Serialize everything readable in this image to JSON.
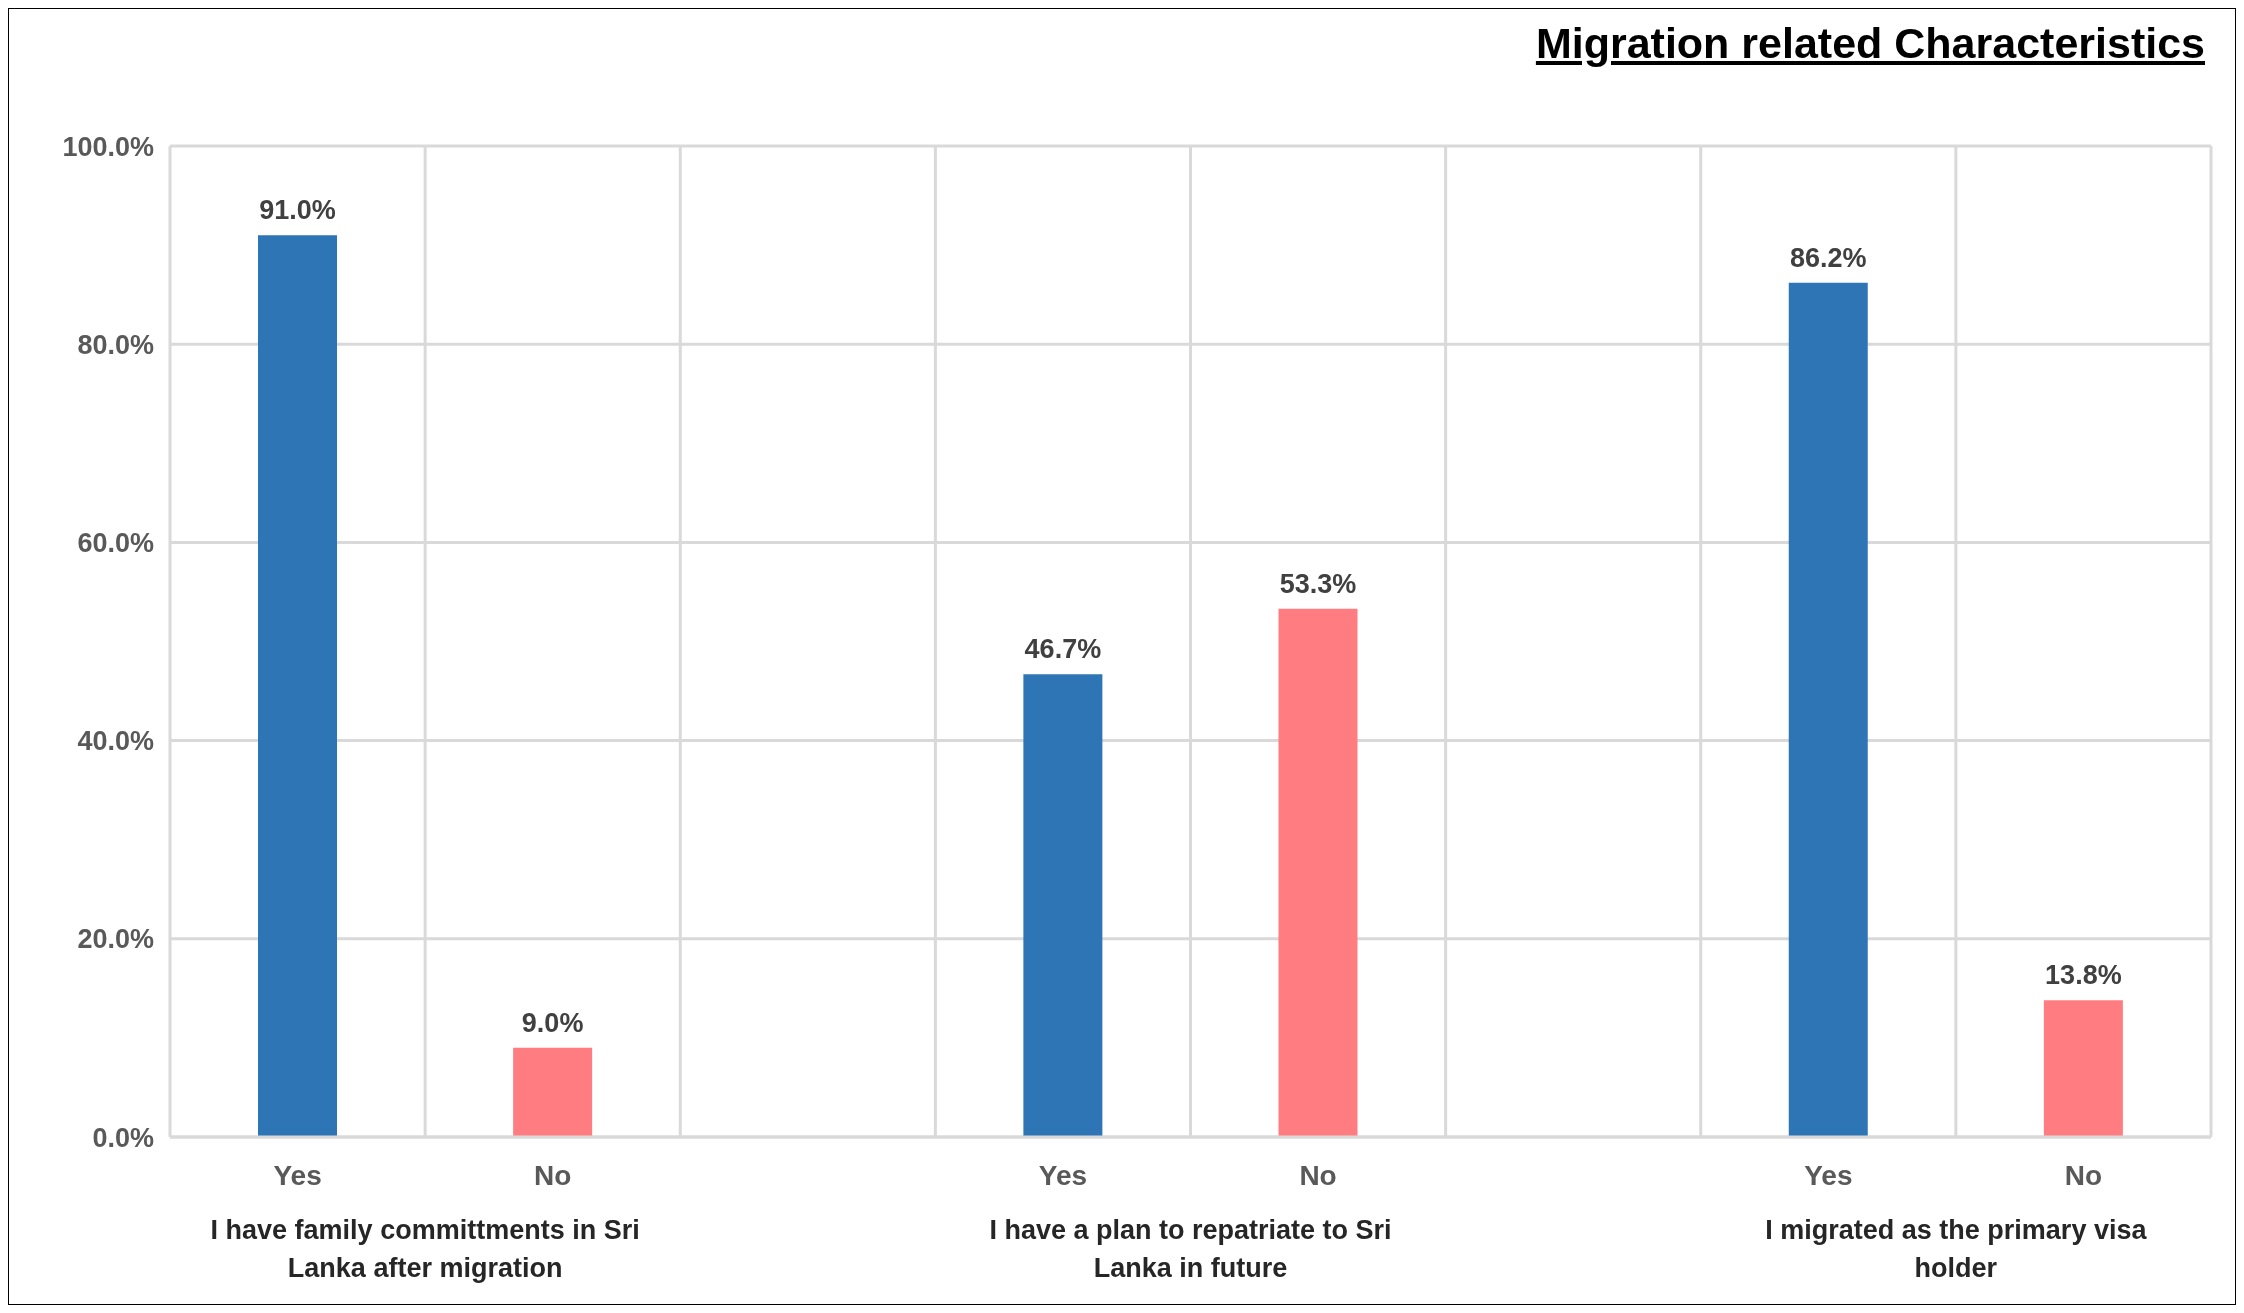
{
  "chart_data": {
    "type": "bar",
    "title": "Migration related Characteristics",
    "categories": [
      "Yes",
      "No",
      null,
      "Yes",
      "No",
      null,
      "Yes",
      "No"
    ],
    "values": [
      91.0,
      9.0,
      null,
      46.7,
      53.3,
      null,
      86.2,
      13.8
    ],
    "colors": [
      "#2e75b6",
      "#ff7c80",
      null,
      "#2e75b6",
      "#ff7c80",
      null,
      "#2e75b6",
      "#ff7c80"
    ],
    "value_labels": [
      "91.0%",
      "9.0%",
      null,
      "46.7%",
      "53.3%",
      null,
      "86.2%",
      "13.8%"
    ],
    "ylim": [
      0,
      100
    ],
    "yticks": [
      {
        "value": 0,
        "label": "0.0%"
      },
      {
        "value": 20,
        "label": "20.0%"
      },
      {
        "value": 40,
        "label": "40.0%"
      },
      {
        "value": 60,
        "label": "60.0%"
      },
      {
        "value": 80,
        "label": "80.0%"
      },
      {
        "value": 100,
        "label": "100.0%"
      }
    ],
    "grid": true,
    "annotations": [
      "I have family committments in Sri Lanka after migration",
      "I have a plan to repatriate to Sri Lanka in future",
      "I migrated as the primary visa holder"
    ]
  }
}
